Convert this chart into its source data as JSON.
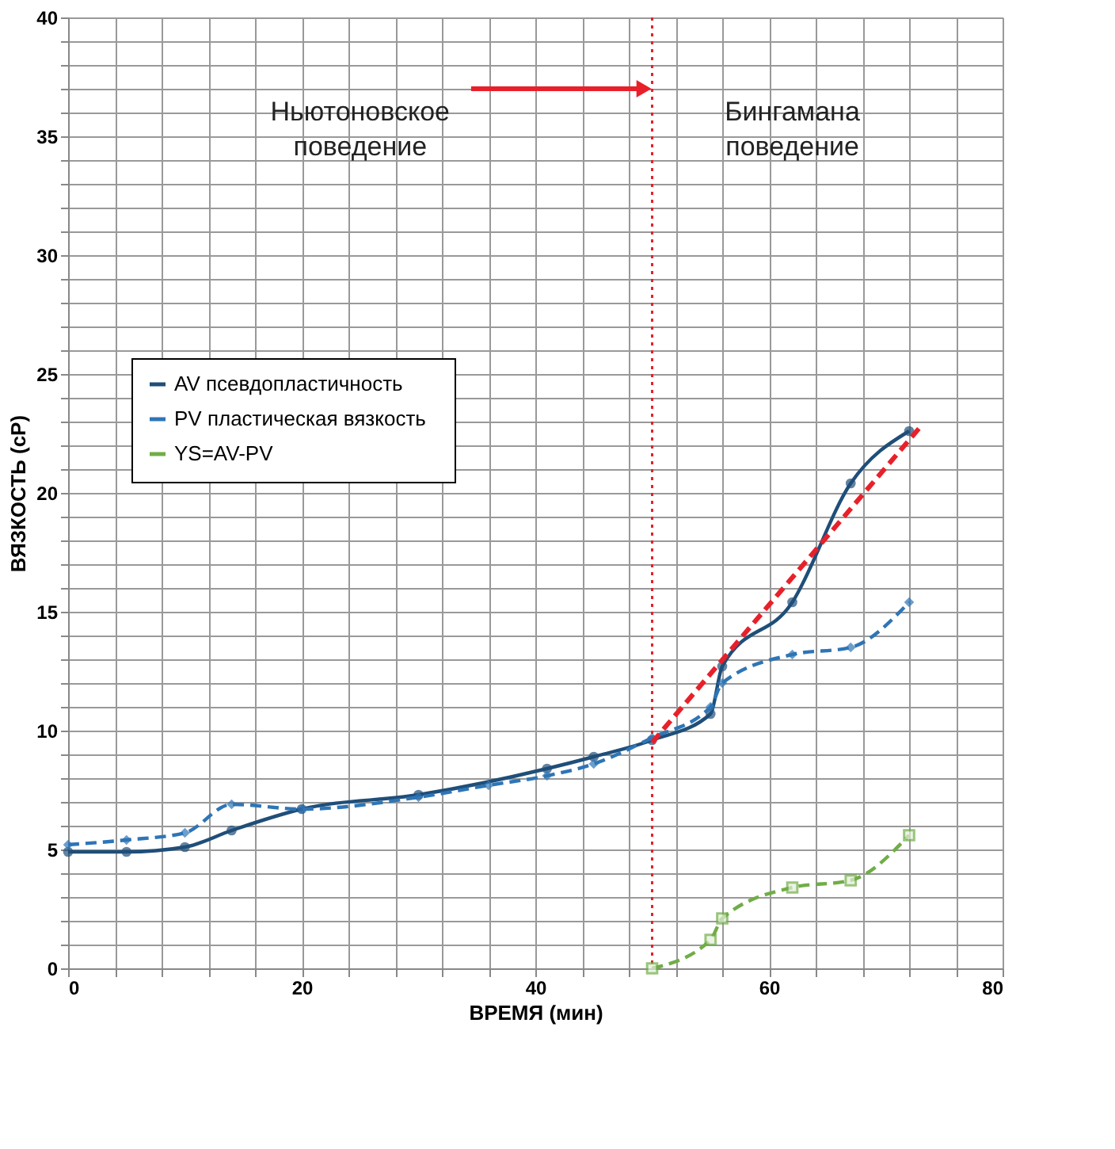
{
  "chart_data": {
    "type": "line",
    "xlabel": "ВРЕМЯ (мин)",
    "ylabel": "ВЯЗКОСТЬ (cP)",
    "xlim": [
      0,
      80
    ],
    "ylim": [
      0,
      40
    ],
    "xticks": [
      0,
      {
        "value": 4,
        "label": null
      },
      {
        "value": 8,
        "label": null
      },
      {
        "value": 12,
        "label": null
      },
      {
        "value": 16,
        "label": null
      },
      20,
      {
        "value": 24,
        "label": null
      },
      {
        "value": 28,
        "label": null
      },
      {
        "value": 32,
        "label": null
      },
      {
        "value": 36,
        "label": null
      },
      40,
      {
        "value": 44,
        "label": null
      },
      {
        "value": 48,
        "label": null
      },
      {
        "value": 52,
        "label": null
      },
      {
        "value": 56,
        "label": null
      },
      60,
      {
        "value": 64,
        "label": null
      },
      {
        "value": 68,
        "label": null
      },
      {
        "value": 72,
        "label": null
      },
      {
        "value": 76,
        "label": null
      },
      80
    ],
    "yticks": [
      0,
      {
        "value": 1,
        "label": null
      },
      {
        "value": 2,
        "label": null
      },
      {
        "value": 3,
        "label": null
      },
      {
        "value": 4,
        "label": null
      },
      5,
      {
        "value": 6,
        "label": null
      },
      {
        "value": 7,
        "label": null
      },
      {
        "value": 8,
        "label": null
      },
      {
        "value": 9,
        "label": null
      },
      10,
      {
        "value": 11,
        "label": null
      },
      {
        "value": 12,
        "label": null
      },
      {
        "value": 13,
        "label": null
      },
      {
        "value": 14,
        "label": null
      },
      15,
      {
        "value": 16,
        "label": null
      },
      {
        "value": 17,
        "label": null
      },
      {
        "value": 18,
        "label": null
      },
      {
        "value": 19,
        "label": null
      },
      20,
      {
        "value": 21,
        "label": null
      },
      {
        "value": 22,
        "label": null
      },
      {
        "value": 23,
        "label": null
      },
      {
        "value": 24,
        "label": null
      },
      25,
      {
        "value": 26,
        "label": null
      },
      {
        "value": 27,
        "label": null
      },
      {
        "value": 28,
        "label": null
      },
      {
        "value": 29,
        "label": null
      },
      30,
      {
        "value": 31,
        "label": null
      },
      {
        "value": 32,
        "label": null
      },
      {
        "value": 33,
        "label": null
      },
      {
        "value": 34,
        "label": null
      },
      35,
      {
        "value": 36,
        "label": null
      },
      {
        "value": 37,
        "label": null
      },
      {
        "value": 38,
        "label": null
      },
      {
        "value": 39,
        "label": null
      },
      40
    ],
    "grid": true,
    "legend": "top left",
    "series": [
      {
        "name": "AV   псевдопластичность",
        "color": "#1f4e79",
        "marker": "circle",
        "line_style": "solid",
        "x": [
          0,
          5,
          10,
          14,
          20,
          30,
          41,
          45,
          50,
          55,
          56,
          62,
          67,
          72
        ],
        "values": [
          4.9,
          4.9,
          5.1,
          5.8,
          6.7,
          7.3,
          8.4,
          8.9,
          9.6,
          10.7,
          12.7,
          15.4,
          20.4,
          22.6
        ]
      },
      {
        "name": "PV   пластическая вязкость",
        "color": "#2e75b6",
        "marker": "diamond",
        "line_style": "dashed",
        "x": [
          0,
          5,
          10,
          14,
          20,
          30,
          36,
          41,
          45,
          50,
          55,
          56,
          62,
          67,
          72
        ],
        "values": [
          5.2,
          5.4,
          5.7,
          6.9,
          6.7,
          7.2,
          7.7,
          8.1,
          8.6,
          9.7,
          11.0,
          12.0,
          13.2,
          13.5,
          15.4
        ]
      },
      {
        "name": "YS=AV-PV",
        "color": "#70ad47",
        "marker": "square",
        "line_style": "dashed",
        "x": [
          50,
          55,
          56,
          62,
          67,
          72
        ],
        "values": [
          0,
          1.2,
          2.1,
          3.4,
          3.7,
          5.6
        ]
      },
      {
        "type": "line",
        "color": "#e8202a",
        "marker": "none",
        "line_style": "dashed",
        "x": [
          50,
          73
        ],
        "values": [
          9.5,
          22.8
        ]
      }
    ],
    "ref_lines": [
      {
        "axis": "x",
        "value": 50,
        "color": "#e8202a",
        "line_style": "dotted"
      }
    ],
    "annotations": [
      {
        "text": "Ньютоновское поведение",
        "x": 50,
        "y": 37
      },
      "Бингамана поведение"
    ]
  }
}
